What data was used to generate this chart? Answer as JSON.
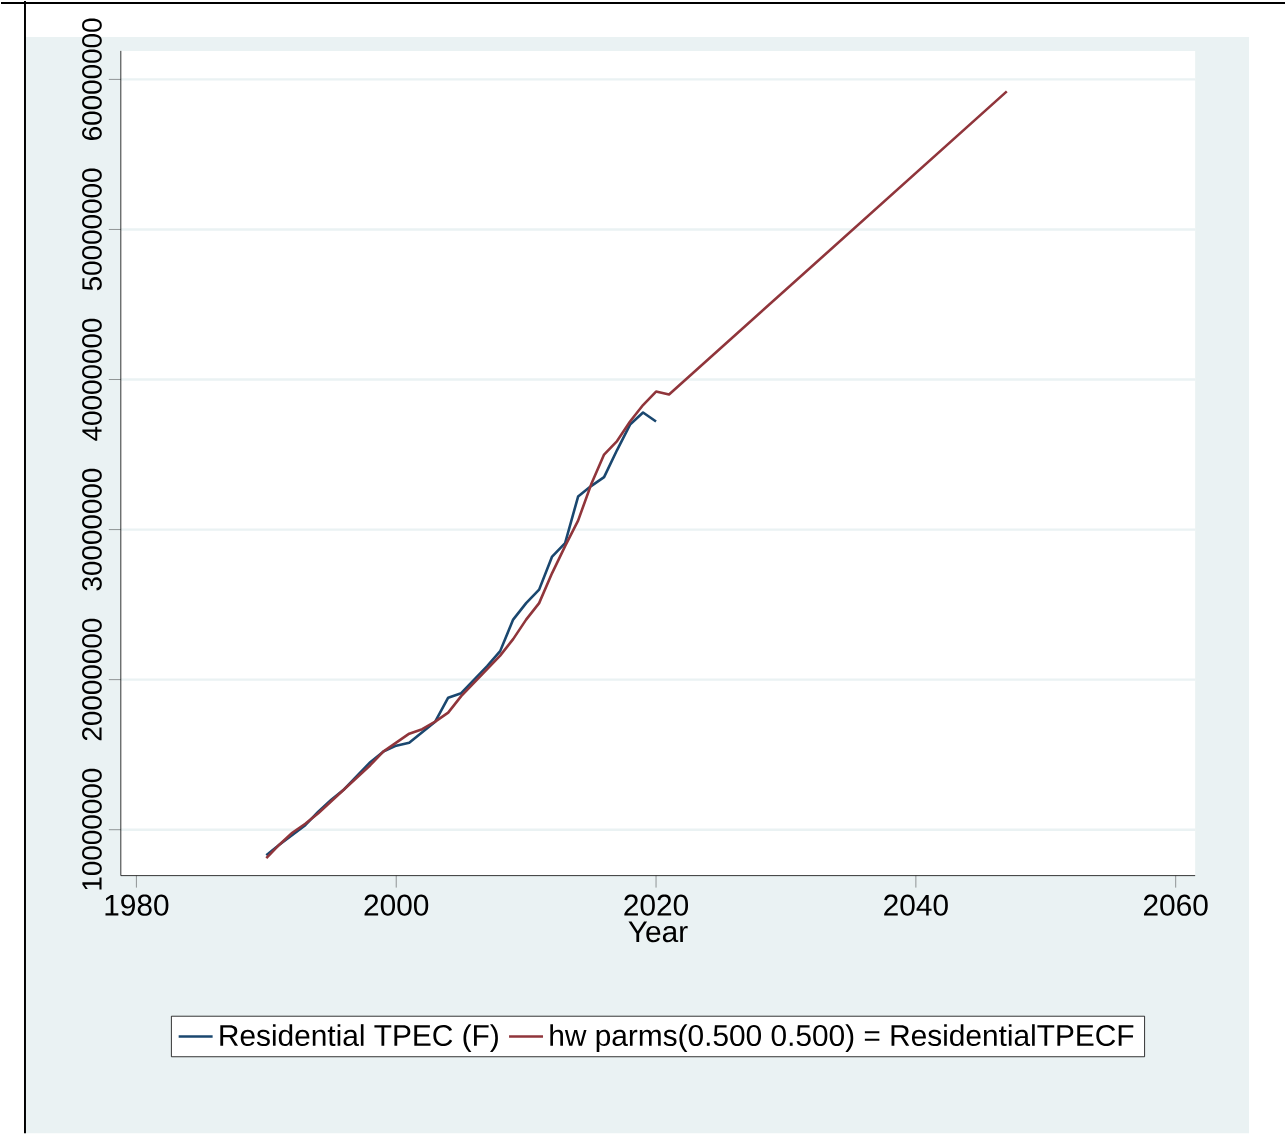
{
  "chart_data": {
    "type": "line",
    "xlabel": "Year",
    "x": [
      1990,
      1991,
      1992,
      1993,
      1994,
      1995,
      1996,
      1997,
      1998,
      1999,
      2000,
      2001,
      2002,
      2003,
      2004,
      2005,
      2006,
      2007,
      2008,
      2009,
      2010,
      2011,
      2012,
      2013,
      2014,
      2015,
      2016,
      2017,
      2018,
      2019,
      2020
    ],
    "series": [
      {
        "name": "Residential TPEC (F)",
        "color": "#1a476f",
        "values": [
          8300000,
          9000000,
          9650000,
          10300000,
          11200000,
          12000000,
          12700000,
          13600000,
          14500000,
          15200000,
          15600000,
          15800000,
          16500000,
          17200000,
          18800000,
          19100000,
          20000000,
          20900000,
          21900000,
          24000000,
          25100000,
          26000000,
          28200000,
          29100000,
          32200000,
          32900000,
          33500000,
          35300000,
          37000000,
          37800000,
          37200000
        ]
      },
      {
        "name": "hw parms(0.500 0.500) = ResidentialTPECF",
        "color": "#90353b",
        "x": [
          1990,
          1991,
          1992,
          1993,
          1994,
          1995,
          1996,
          1997,
          1998,
          1999,
          2000,
          2001,
          2002,
          2003,
          2004,
          2005,
          2006,
          2007,
          2008,
          2009,
          2010,
          2011,
          2012,
          2013,
          2014,
          2015,
          2016,
          2017,
          2018,
          2019,
          2020,
          2021,
          2047
        ],
        "values": [
          8100000,
          9000000,
          9800000,
          10400000,
          11100000,
          11900000,
          12700000,
          13500000,
          14300000,
          15200000,
          15800000,
          16400000,
          16700000,
          17200000,
          17800000,
          18900000,
          19800000,
          20700000,
          21600000,
          22700000,
          24000000,
          25100000,
          27100000,
          28900000,
          30600000,
          33000000,
          35000000,
          35900000,
          37200000,
          38300000,
          39200000,
          39000000,
          59200000
        ]
      }
    ],
    "xlim": [
      1978.8,
      2061.5
    ],
    "ylim": [
      6940000,
      61900000
    ],
    "xticks": [
      1980,
      2000,
      2020,
      2040,
      2060
    ],
    "yticks": [
      10000000,
      20000000,
      30000000,
      40000000,
      50000000,
      60000000
    ],
    "grid": "y",
    "legend": "bottom"
  }
}
